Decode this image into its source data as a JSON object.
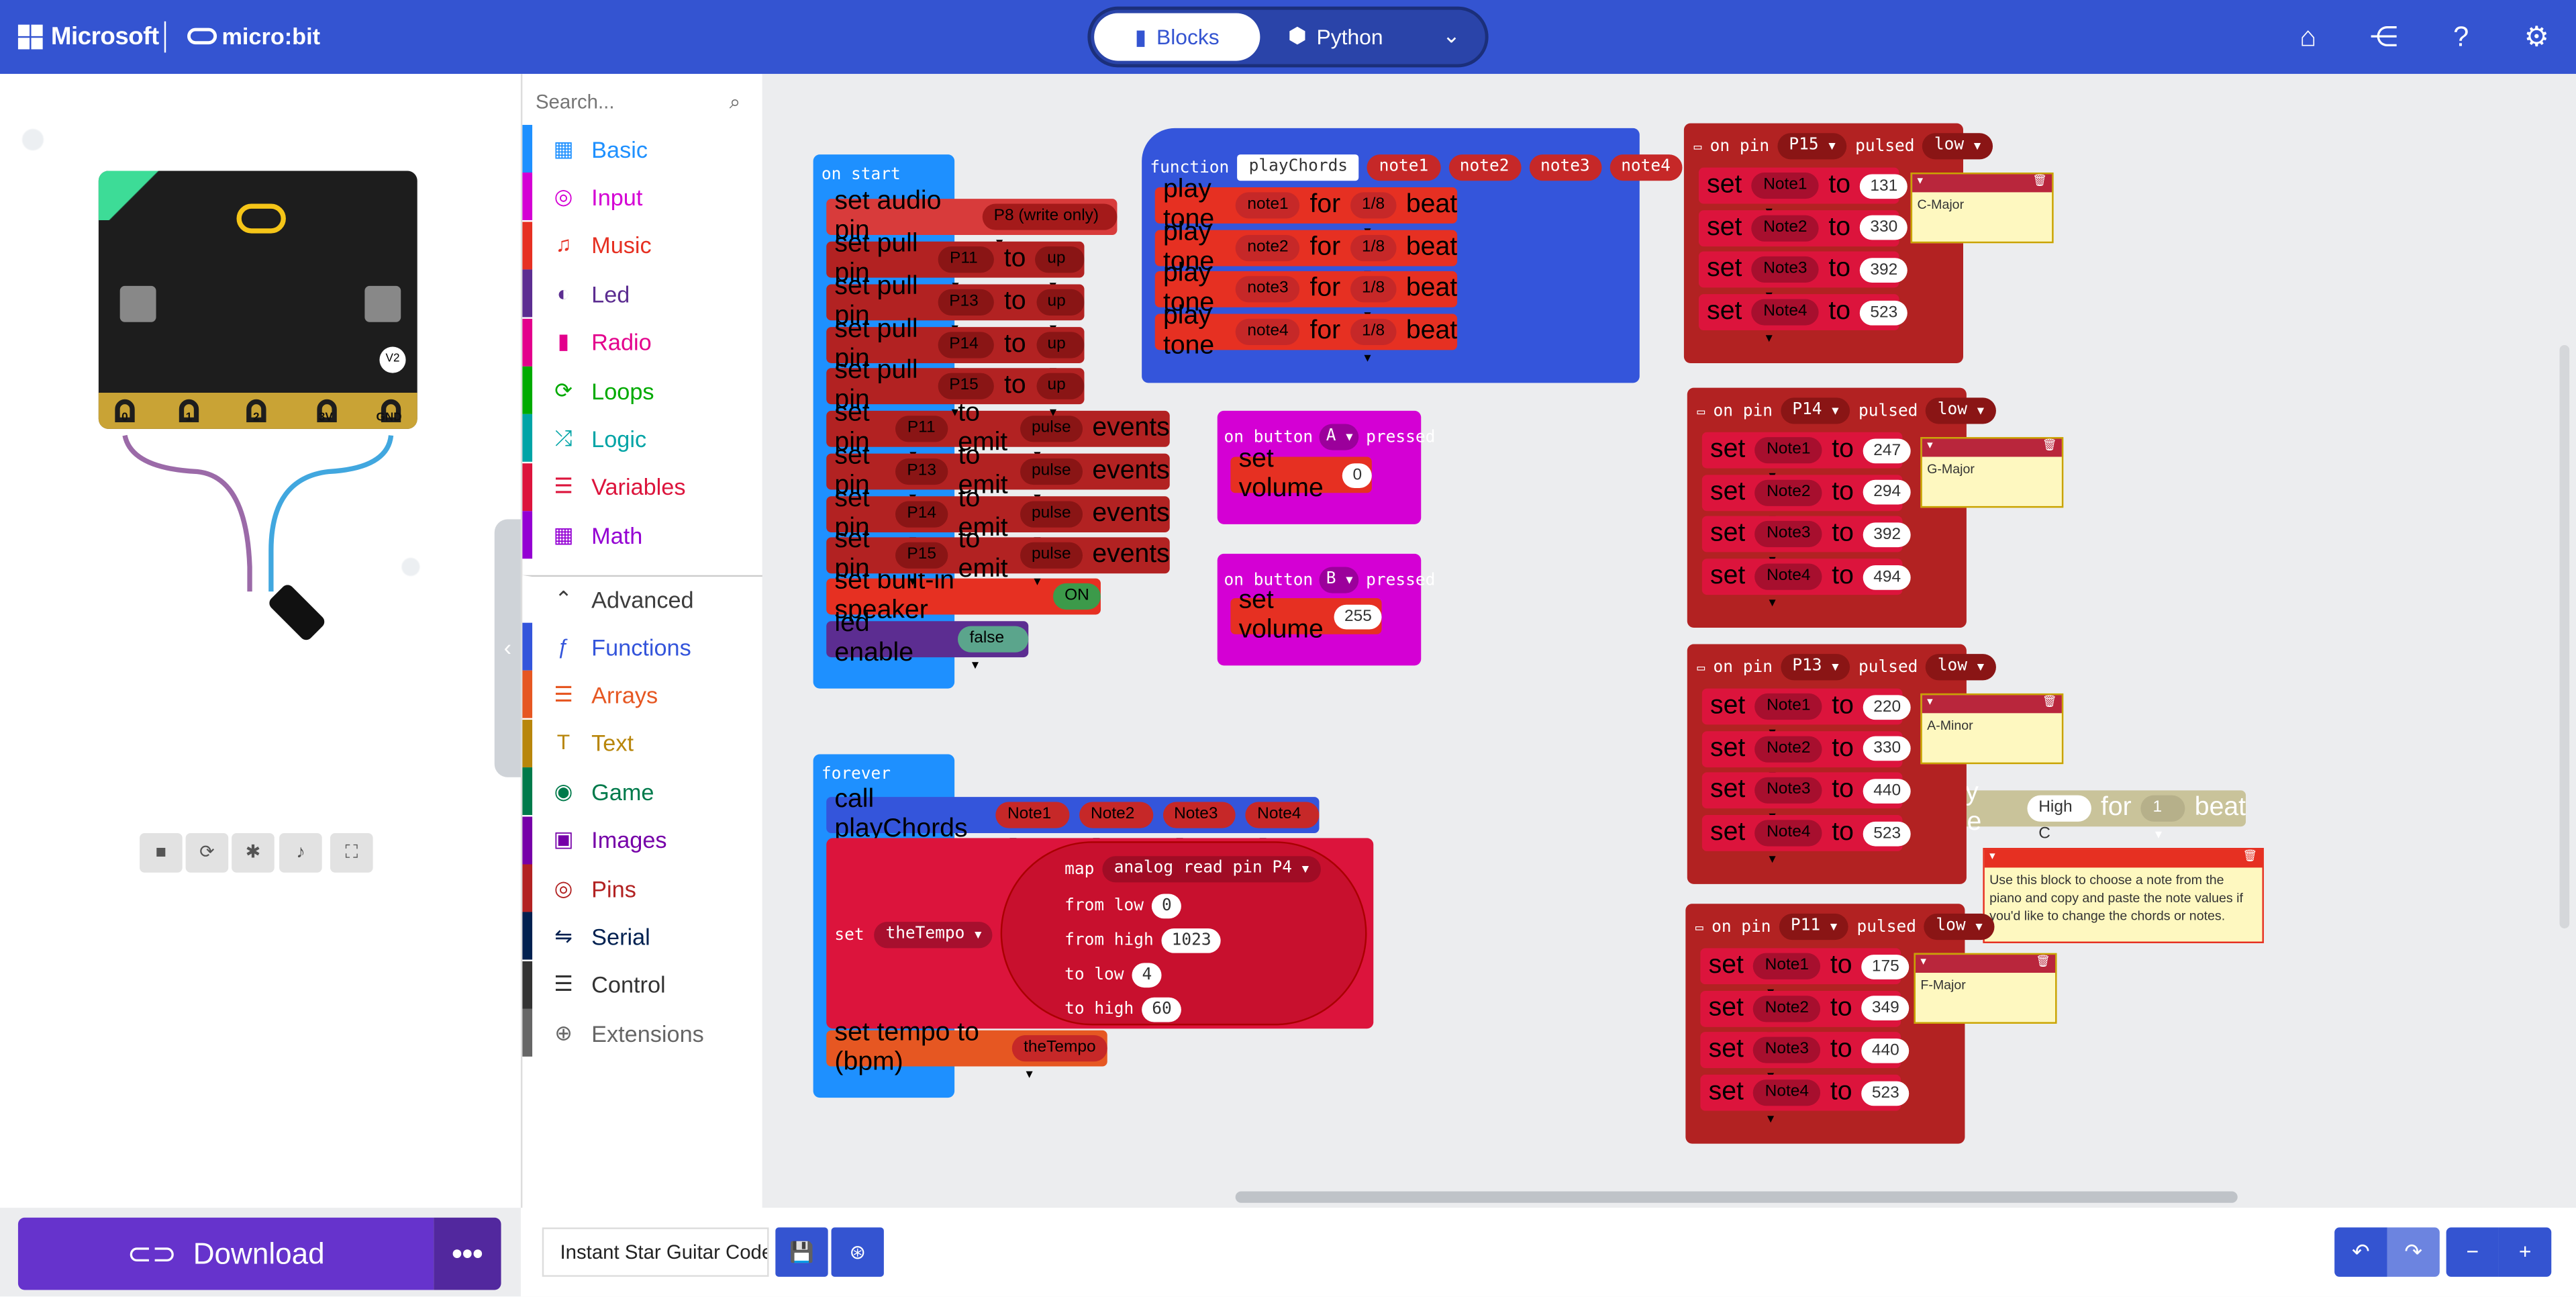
{
  "header": {
    "microsoft": "Microsoft",
    "microbit": "micro:bit",
    "blocks_tab": "Blocks",
    "python_tab": "Python"
  },
  "sim": {
    "pins": [
      "0",
      "1",
      "2",
      "3V",
      "GND"
    ],
    "version_badge": "V2"
  },
  "download": {
    "label": "Download",
    "more": "•••"
  },
  "toolbox": {
    "search_placeholder": "Search...",
    "categories": [
      {
        "label": "Basic",
        "color": "#1e90ff"
      },
      {
        "label": "Input",
        "color": "#d400d4"
      },
      {
        "label": "Music",
        "color": "#e63022"
      },
      {
        "label": "Led",
        "color": "#5c2d91"
      },
      {
        "label": "Radio",
        "color": "#e3008c"
      },
      {
        "label": "Loops",
        "color": "#00aa00"
      },
      {
        "label": "Logic",
        "color": "#00a4a6"
      },
      {
        "label": "Variables",
        "color": "#dc143c"
      },
      {
        "label": "Math",
        "color": "#9400d3"
      },
      {
        "label": "Advanced",
        "color": "#3c3c3c"
      },
      {
        "label": "Functions",
        "color": "#3455db"
      },
      {
        "label": "Arrays",
        "color": "#e65722"
      },
      {
        "label": "Text",
        "color": "#b8860b"
      },
      {
        "label": "Game",
        "color": "#007a4b"
      },
      {
        "label": "Images",
        "color": "#7600a8"
      },
      {
        "label": "Pins",
        "color": "#b22222"
      },
      {
        "label": "Serial",
        "color": "#002050"
      },
      {
        "label": "Control",
        "color": "#333333"
      },
      {
        "label": "Extensions",
        "color": "#666666"
      }
    ]
  },
  "blocks": {
    "on_start": "on start",
    "audio_pin": [
      "set audio pin",
      "P8 (write only)"
    ],
    "pull": [
      "set pull pin",
      "to",
      "up"
    ],
    "pull_pins": [
      "P11",
      "P13",
      "P14",
      "P15"
    ],
    "emit": [
      "set pin",
      "to emit",
      "pulse",
      "events"
    ],
    "speaker": [
      "set built-in speaker",
      "ON"
    ],
    "led_enable": [
      "led enable",
      "false"
    ],
    "function": {
      "label": "function",
      "name": "playChords",
      "params": [
        "note1",
        "note2",
        "note3",
        "note4"
      ]
    },
    "play_tone": [
      "play tone",
      "for",
      "1/8",
      "beat"
    ],
    "on_button_a": [
      "on button",
      "A",
      "pressed"
    ],
    "on_button_b": [
      "on button",
      "B",
      "pressed"
    ],
    "set_volume": "set volume",
    "volume_a": "0",
    "volume_b": "255",
    "forever": "forever",
    "call": [
      "call playChords",
      "Note1",
      "Note2",
      "Note3",
      "Note4"
    ],
    "set_tempo_var": [
      "set",
      "theTempo",
      "to"
    ],
    "map": [
      "map",
      "analog read pin",
      "P4",
      "from low",
      "0",
      "from high",
      "1023",
      "to low",
      "4",
      "to high",
      "60"
    ],
    "set_tempo": [
      "set tempo to (bpm)",
      "theTempo"
    ],
    "on_pin": [
      "on pin",
      "pulsed",
      "low"
    ],
    "set": "set",
    "to": "to",
    "vars": [
      "Note1",
      "Note2",
      "Note3",
      "Note4"
    ],
    "groups": [
      {
        "pin": "P15",
        "values": [
          "131",
          "330",
          "392",
          "523"
        ],
        "comment": "C-Major"
      },
      {
        "pin": "P14",
        "values": [
          "247",
          "294",
          "392",
          "494"
        ],
        "comment": "G-Major"
      },
      {
        "pin": "P13",
        "values": [
          "220",
          "330",
          "440",
          "523"
        ],
        "comment": "A-Minor"
      },
      {
        "pin": "P11",
        "values": [
          "175",
          "349",
          "440",
          "523"
        ],
        "comment": "F-Major"
      }
    ],
    "high_tone": [
      "play tone",
      "High C",
      "for",
      "1",
      "beat"
    ],
    "hint": "Use this block to choose a note from the piano and copy and paste the note values if you'd like to change the chords or notes."
  },
  "project": {
    "name": "Instant Star Guitar Code"
  }
}
